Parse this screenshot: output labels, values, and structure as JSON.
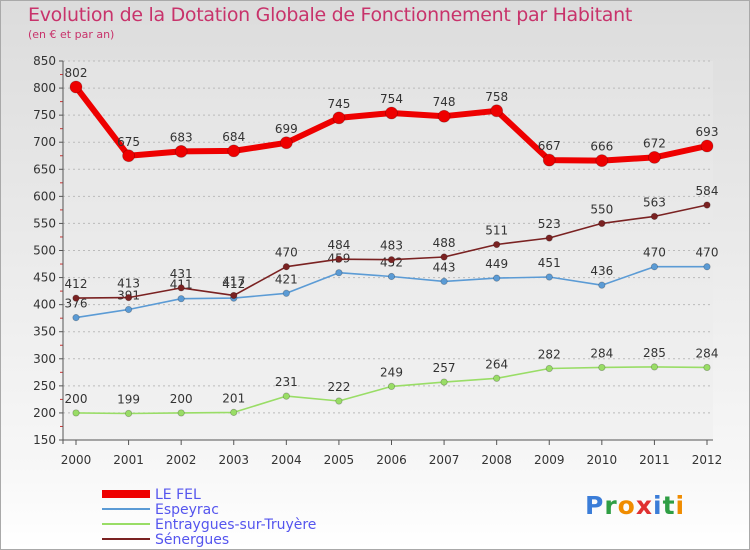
{
  "header": {
    "title": "Evolution de la Dotation Globale de Fonctionnement par Habitant",
    "subtitle": "(en € et par an)"
  },
  "chart_data": {
    "type": "line",
    "title": "Evolution de la Dotation Globale de Fonctionnement par Habitant",
    "subtitle": "(en € et par an)",
    "xlabel": "",
    "ylabel": "",
    "ylim": [
      150,
      850
    ],
    "yticks": [
      150,
      200,
      250,
      300,
      350,
      400,
      450,
      500,
      550,
      600,
      650,
      700,
      750,
      800,
      850
    ],
    "grid": "horizontal dashed",
    "legend_position": "bottom-left",
    "x": [
      "2000",
      "2001",
      "2002",
      "2003",
      "2004",
      "2005",
      "2006",
      "2007",
      "2008",
      "2009",
      "2010",
      "2011",
      "2012"
    ],
    "series": [
      {
        "name": "LE FEL",
        "color": "#ee0000",
        "values": [
          802,
          675,
          683,
          684,
          699,
          745,
          754,
          748,
          758,
          667,
          666,
          672,
          693
        ]
      },
      {
        "name": "Espeyrac",
        "color": "#5b9bd5",
        "values": [
          376,
          391,
          411,
          412,
          421,
          459,
          452,
          443,
          449,
          451,
          436,
          470,
          470
        ]
      },
      {
        "name": "Entraygues-sur-Truyère",
        "color": "#99dd66",
        "values": [
          200,
          199,
          200,
          201,
          231,
          222,
          249,
          257,
          264,
          282,
          284,
          285,
          284
        ]
      },
      {
        "name": "Sénergues",
        "color": "#7a2222",
        "values": [
          412,
          413,
          431,
          417,
          470,
          484,
          483,
          488,
          511,
          523,
          550,
          563,
          584
        ]
      }
    ]
  },
  "logo": {
    "text": "Proxiti",
    "letters": [
      "P",
      "r",
      "o",
      "x",
      "i",
      "t",
      "i"
    ]
  },
  "colors": {
    "title": "#c8336b",
    "legend_text": "#5555ee",
    "axis_text": "#333333"
  }
}
